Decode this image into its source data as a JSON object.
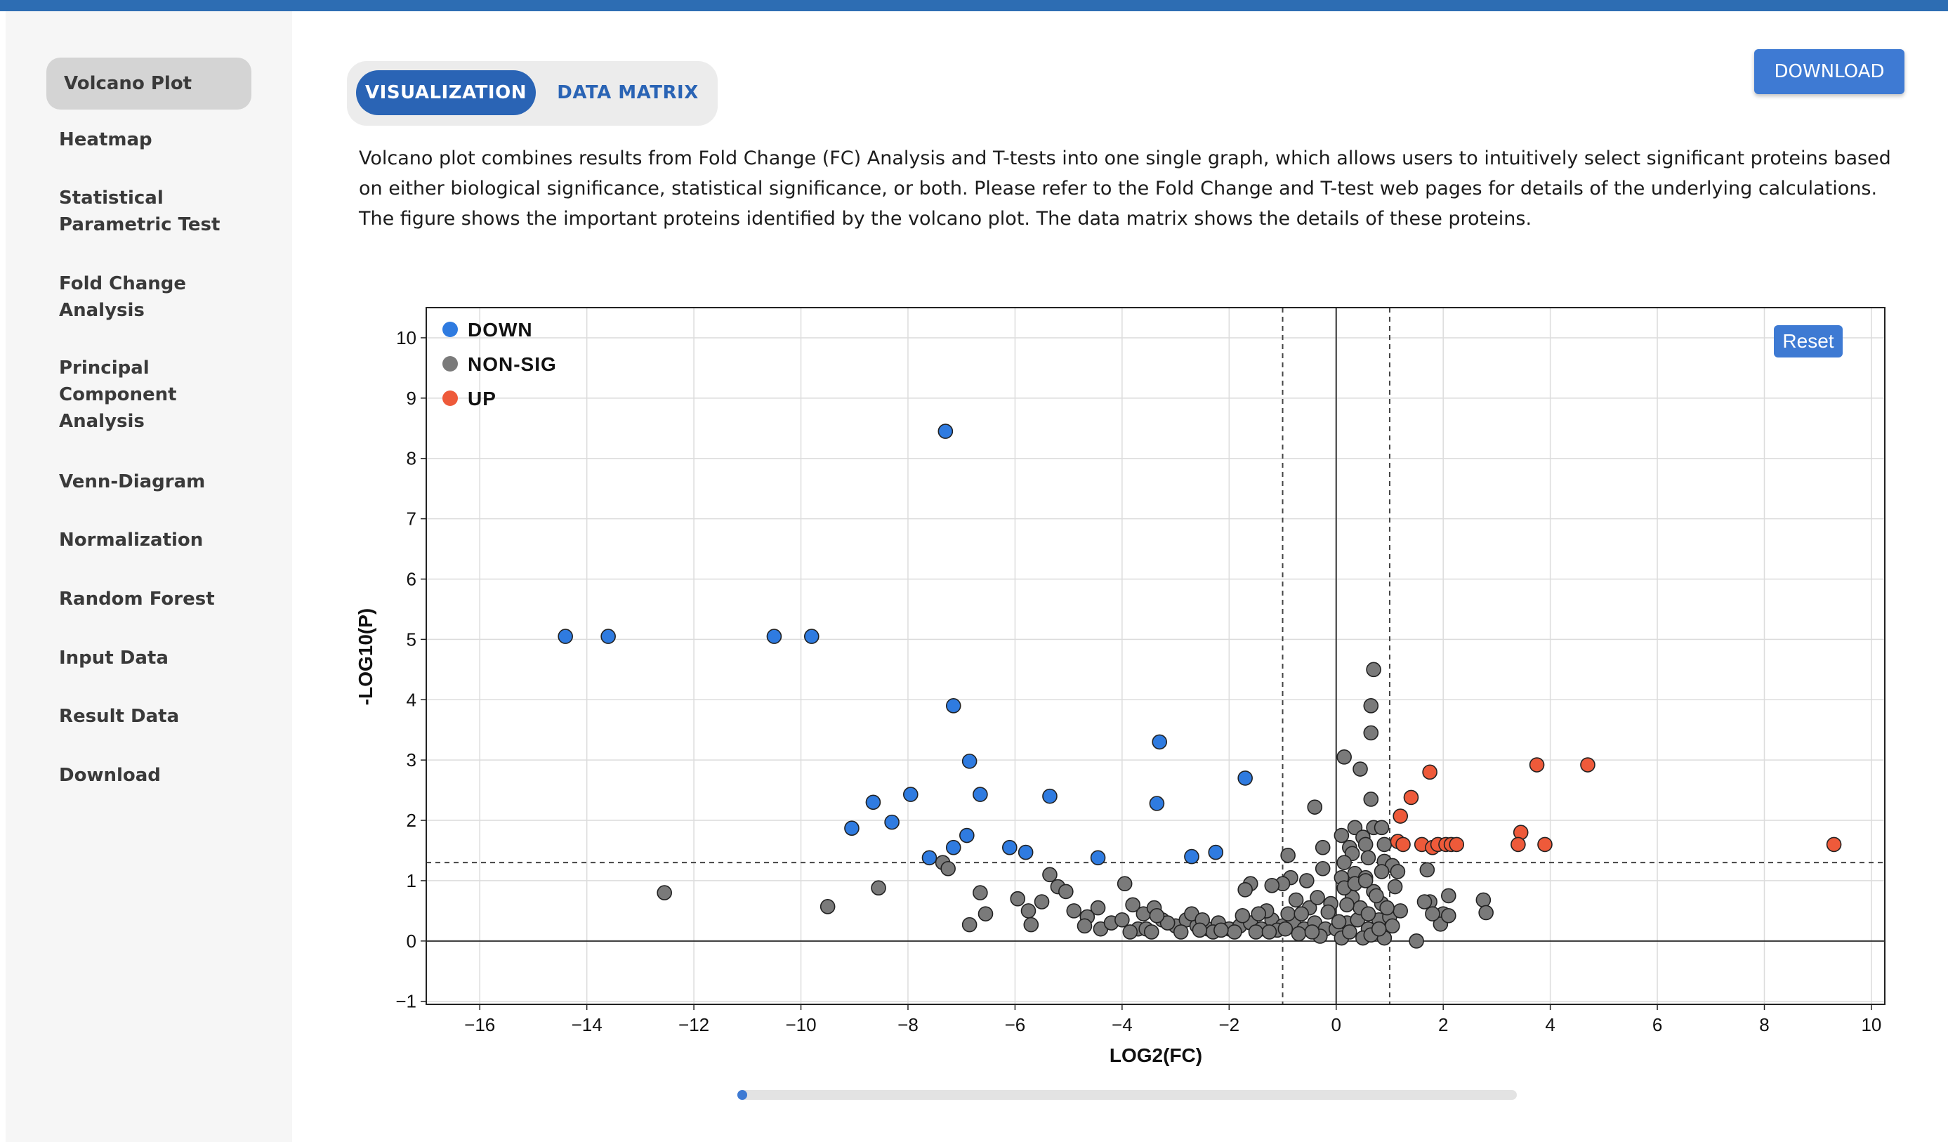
{
  "sidebar": {
    "items": [
      {
        "label": "Volcano Plot",
        "lines": [
          "Volcano Plot"
        ],
        "active": true,
        "name": "sidebar-item-volcano-plot"
      },
      {
        "label": "Heatmap",
        "lines": [
          "Heatmap"
        ],
        "active": false,
        "name": "sidebar-item-heatmap"
      },
      {
        "label": "Statistical Parametric Test",
        "lines": [
          "Statistical",
          "Parametric Test"
        ],
        "active": false,
        "name": "sidebar-item-statistical-parametric-test"
      },
      {
        "label": "Fold Change Analysis",
        "lines": [
          "Fold Change",
          "Analysis"
        ],
        "active": false,
        "name": "sidebar-item-fold-change-analysis"
      },
      {
        "label": "Principal Component Analysis",
        "lines": [
          "Principal",
          "Component",
          "Analysis"
        ],
        "active": false,
        "name": "sidebar-item-principal-component-analysis"
      },
      {
        "label": "Venn-Diagram",
        "lines": [
          "Venn-Diagram"
        ],
        "active": false,
        "name": "sidebar-item-venn-diagram"
      },
      {
        "label": "Normalization",
        "lines": [
          "Normalization"
        ],
        "active": false,
        "name": "sidebar-item-normalization"
      },
      {
        "label": "Random Forest",
        "lines": [
          "Random Forest"
        ],
        "active": false,
        "name": "sidebar-item-random-forest"
      },
      {
        "label": "Input Data",
        "lines": [
          "Input Data"
        ],
        "active": false,
        "name": "sidebar-item-input-data"
      },
      {
        "label": "Result Data",
        "lines": [
          "Result Data"
        ],
        "active": false,
        "name": "sidebar-item-result-data"
      },
      {
        "label": "Download",
        "lines": [
          "Download"
        ],
        "active": false,
        "name": "sidebar-item-download"
      }
    ]
  },
  "tabs": {
    "visualization": "VISUALIZATION",
    "data_matrix": "DATA MATRIX",
    "active": "visualization"
  },
  "download_button": "DOWNLOAD",
  "description": "Volcano plot combines results from Fold Change (FC) Analysis and T-tests into one single graph, which allows users to intuitively select significant proteins based on either biological significance, statistical significance, or both. Please refer to the Fold Change and T-test web pages for details of the underlying calculations. The figure shows the important proteins identified by the volcano plot. The data matrix shows the details of these proteins.",
  "chart_data": {
    "type": "scatter",
    "xlabel": "LOG2(FC)",
    "ylabel": "-LOG10(P)",
    "xlim": [
      -17,
      10.25
    ],
    "ylim": [
      -1.05,
      10.5
    ],
    "xticks": [
      -16,
      -14,
      -12,
      -10,
      -8,
      -6,
      -4,
      -2,
      0,
      2,
      4,
      6,
      8,
      10
    ],
    "yticks": [
      -1,
      0,
      1,
      2,
      3,
      4,
      5,
      6,
      7,
      8,
      9,
      10
    ],
    "grid": true,
    "legend_position": "top-left",
    "reset_label": "Reset",
    "thresholds": {
      "fc_lines": [
        -1,
        1
      ],
      "p_line": 1.3
    },
    "colors": {
      "DOWN": "#2f7be0",
      "NON-SIG": "#7a7a7a",
      "UP": "#ee5a3a"
    },
    "series": [
      {
        "name": "DOWN",
        "points": [
          [
            -7.3,
            8.45
          ],
          [
            -14.4,
            5.05
          ],
          [
            -13.6,
            5.05
          ],
          [
            -10.5,
            5.05
          ],
          [
            -9.8,
            5.05
          ],
          [
            -7.15,
            3.9
          ],
          [
            -6.85,
            2.98
          ],
          [
            -3.3,
            3.3
          ],
          [
            -1.7,
            2.7
          ],
          [
            -8.65,
            2.3
          ],
          [
            -7.95,
            2.43
          ],
          [
            -6.65,
            2.43
          ],
          [
            -5.35,
            2.4
          ],
          [
            -3.35,
            2.28
          ],
          [
            -9.05,
            1.87
          ],
          [
            -8.3,
            1.97
          ],
          [
            -6.9,
            1.75
          ],
          [
            -7.15,
            1.55
          ],
          [
            -7.6,
            1.38
          ],
          [
            -6.1,
            1.55
          ],
          [
            -5.8,
            1.47
          ],
          [
            -4.45,
            1.38
          ],
          [
            -2.7,
            1.4
          ],
          [
            -2.25,
            1.47
          ]
        ]
      },
      {
        "name": "NON-SIG",
        "points": [
          [
            0.7,
            4.5
          ],
          [
            0.65,
            3.9
          ],
          [
            0.65,
            3.45
          ],
          [
            0.15,
            3.05
          ],
          [
            0.45,
            2.85
          ],
          [
            0.65,
            2.35
          ],
          [
            -0.4,
            2.22
          ],
          [
            0.7,
            1.88
          ],
          [
            0.85,
            1.88
          ],
          [
            0.35,
            1.88
          ],
          [
            0.1,
            1.75
          ],
          [
            0.5,
            1.72
          ],
          [
            0.55,
            1.6
          ],
          [
            0.25,
            1.55
          ],
          [
            -0.25,
            1.55
          ],
          [
            0.9,
            1.6
          ],
          [
            0.3,
            1.45
          ],
          [
            0.6,
            1.38
          ],
          [
            0.9,
            1.32
          ],
          [
            1.05,
            1.25
          ],
          [
            1.7,
            1.18
          ],
          [
            0.15,
            1.3
          ],
          [
            0.85,
            1.15
          ],
          [
            0.35,
            1.12
          ],
          [
            0.55,
            1.05
          ],
          [
            1.15,
            1.15
          ],
          [
            0.1,
            1.05
          ],
          [
            -0.9,
            1.42
          ],
          [
            -0.25,
            1.2
          ],
          [
            -0.85,
            1.05
          ],
          [
            -0.55,
            1.0
          ],
          [
            -1.0,
            0.95
          ],
          [
            -1.6,
            0.95
          ],
          [
            -1.7,
            0.85
          ],
          [
            -1.2,
            0.92
          ],
          [
            -12.55,
            0.8
          ],
          [
            -9.5,
            0.57
          ],
          [
            -8.55,
            0.88
          ],
          [
            -7.35,
            1.3
          ],
          [
            -7.25,
            1.2
          ],
          [
            -6.65,
            0.8
          ],
          [
            -6.55,
            0.45
          ],
          [
            -6.85,
            0.27
          ],
          [
            -5.95,
            0.7
          ],
          [
            -5.75,
            0.5
          ],
          [
            -5.7,
            0.27
          ],
          [
            -5.35,
            1.1
          ],
          [
            -5.2,
            0.9
          ],
          [
            -5.05,
            0.82
          ],
          [
            -5.5,
            0.65
          ],
          [
            -4.9,
            0.5
          ],
          [
            -4.65,
            0.4
          ],
          [
            -4.45,
            0.55
          ],
          [
            -4.4,
            0.2
          ],
          [
            -4.2,
            0.3
          ],
          [
            -3.95,
            0.95
          ],
          [
            -3.8,
            0.6
          ],
          [
            -3.6,
            0.45
          ],
          [
            -3.4,
            0.55
          ],
          [
            -3.25,
            0.35
          ],
          [
            -3.0,
            0.25
          ],
          [
            -2.8,
            0.35
          ],
          [
            -2.6,
            0.25
          ],
          [
            -2.4,
            0.2
          ],
          [
            -2.2,
            0.3
          ],
          [
            -2.0,
            0.2
          ],
          [
            -1.8,
            0.25
          ],
          [
            -1.6,
            0.3
          ],
          [
            -1.4,
            0.2
          ],
          [
            -1.2,
            0.35
          ],
          [
            -1.0,
            0.25
          ],
          [
            -0.8,
            0.3
          ],
          [
            -0.6,
            0.2
          ],
          [
            -0.4,
            0.3
          ],
          [
            -0.2,
            0.2
          ],
          [
            0.0,
            0.2
          ],
          [
            0.2,
            0.3
          ],
          [
            0.4,
            0.35
          ],
          [
            0.6,
            0.2
          ],
          [
            0.8,
            0.35
          ],
          [
            1.0,
            0.4
          ],
          [
            1.2,
            0.5
          ],
          [
            -3.7,
            0.2
          ],
          [
            -3.55,
            0.2
          ],
          [
            -3.15,
            0.3
          ],
          [
            -2.9,
            0.15
          ],
          [
            -2.7,
            0.45
          ],
          [
            -2.5,
            0.35
          ],
          [
            -2.3,
            0.15
          ],
          [
            -1.9,
            0.15
          ],
          [
            -1.5,
            0.15
          ],
          [
            -1.3,
            0.5
          ],
          [
            -1.1,
            0.18
          ],
          [
            -0.9,
            0.45
          ],
          [
            -0.7,
            0.12
          ],
          [
            -0.5,
            0.55
          ],
          [
            -0.3,
            0.08
          ],
          [
            -0.1,
            0.62
          ],
          [
            0.1,
            0.05
          ],
          [
            0.3,
            0.72
          ],
          [
            0.5,
            0.05
          ],
          [
            0.7,
            0.82
          ],
          [
            0.9,
            0.05
          ],
          [
            1.1,
            0.9
          ],
          [
            1.75,
            0.65
          ],
          [
            2.0,
            0.45
          ],
          [
            2.1,
            0.75
          ],
          [
            1.95,
            0.28
          ],
          [
            2.1,
            0.42
          ],
          [
            1.65,
            0.65
          ],
          [
            1.8,
            0.45
          ],
          [
            1.5,
            0.0
          ],
          [
            2.75,
            0.68
          ],
          [
            2.8,
            0.47
          ],
          [
            -4.7,
            0.25
          ],
          [
            -4.0,
            0.35
          ],
          [
            -3.85,
            0.15
          ],
          [
            -3.45,
            0.15
          ],
          [
            -3.35,
            0.42
          ],
          [
            -2.55,
            0.18
          ],
          [
            -2.15,
            0.18
          ],
          [
            -1.75,
            0.42
          ],
          [
            -1.45,
            0.45
          ],
          [
            -1.25,
            0.15
          ],
          [
            -0.65,
            0.45
          ],
          [
            -0.45,
            0.15
          ],
          [
            -0.15,
            0.48
          ],
          [
            0.05,
            0.32
          ],
          [
            0.25,
            0.15
          ],
          [
            0.45,
            0.55
          ],
          [
            0.65,
            0.1
          ],
          [
            0.85,
            0.62
          ],
          [
            1.05,
            0.25
          ],
          [
            0.15,
            0.88
          ],
          [
            0.35,
            0.95
          ],
          [
            0.55,
            1.0
          ],
          [
            0.75,
            0.75
          ],
          [
            0.95,
            0.55
          ],
          [
            -0.35,
            0.72
          ],
          [
            -0.75,
            0.68
          ],
          [
            -0.95,
            0.2
          ],
          [
            0.2,
            0.6
          ],
          [
            0.6,
            0.45
          ],
          [
            0.8,
            0.2
          ]
        ]
      },
      {
        "name": "UP",
        "points": [
          [
            3.75,
            2.92
          ],
          [
            4.7,
            2.92
          ],
          [
            1.75,
            2.8
          ],
          [
            1.4,
            2.38
          ],
          [
            1.2,
            2.07
          ],
          [
            1.15,
            1.65
          ],
          [
            1.25,
            1.6
          ],
          [
            1.6,
            1.6
          ],
          [
            1.8,
            1.55
          ],
          [
            1.9,
            1.6
          ],
          [
            2.05,
            1.6
          ],
          [
            2.15,
            1.6
          ],
          [
            2.25,
            1.6
          ],
          [
            3.45,
            1.8
          ],
          [
            3.4,
            1.6
          ],
          [
            3.9,
            1.6
          ],
          [
            9.3,
            1.6
          ]
        ]
      }
    ]
  }
}
